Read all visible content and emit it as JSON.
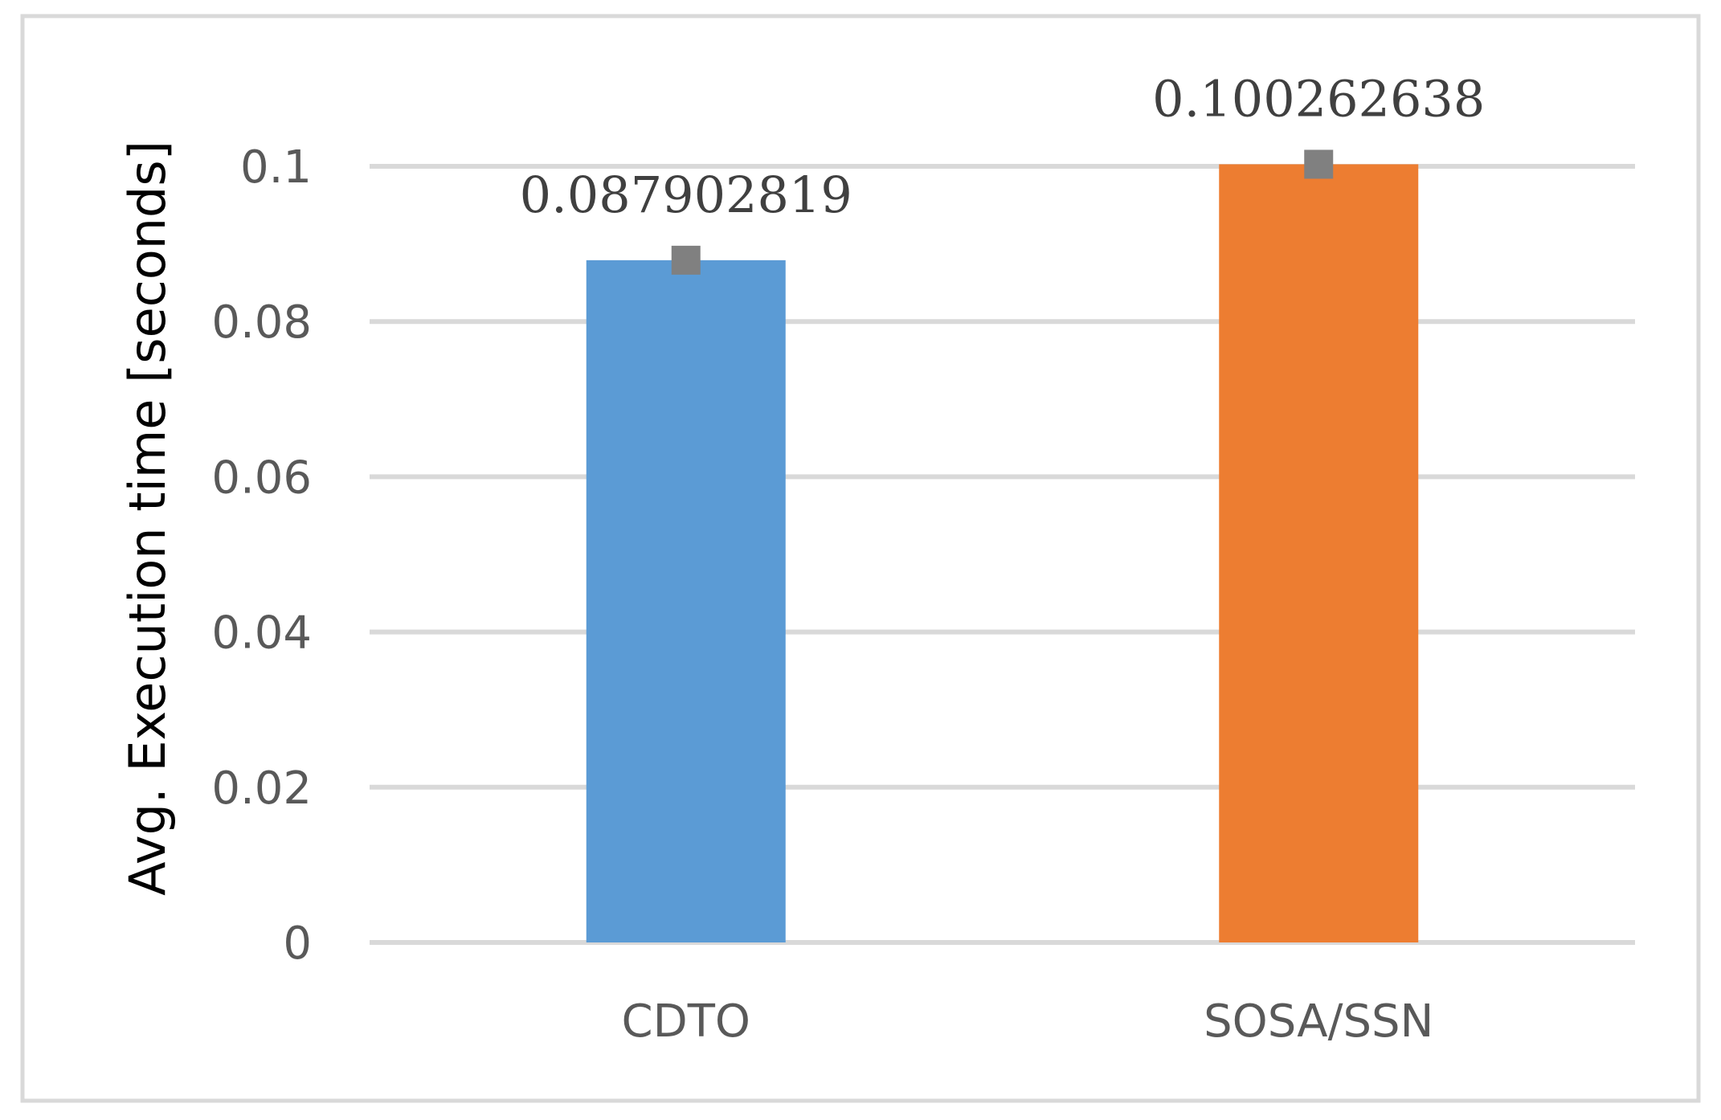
{
  "chart_data": {
    "type": "bar",
    "categories": [
      "CDTO",
      "SOSA/SSN"
    ],
    "values": [
      0.087902819,
      0.100262638
    ],
    "data_labels": [
      "0.087902819",
      "0.100262638"
    ],
    "bar_colors": [
      "#5B9BD5",
      "#ED7D31"
    ],
    "marker_color": "#808080",
    "gridline_color": "#D9D9D9",
    "border_color": "#D9D9D9",
    "title": "",
    "xlabel": "",
    "ylabel": "Avg. Execution time [seconds]",
    "ylim": [
      0,
      0.1
    ],
    "yticks": [
      0,
      0.02,
      0.04,
      0.06,
      0.08,
      0.1
    ],
    "ytick_labels": [
      "0",
      "0.02",
      "0.04",
      "0.06",
      "0.08",
      "0.1"
    ],
    "grid": true,
    "legend": "none",
    "markers": "square markers at bar tops"
  }
}
